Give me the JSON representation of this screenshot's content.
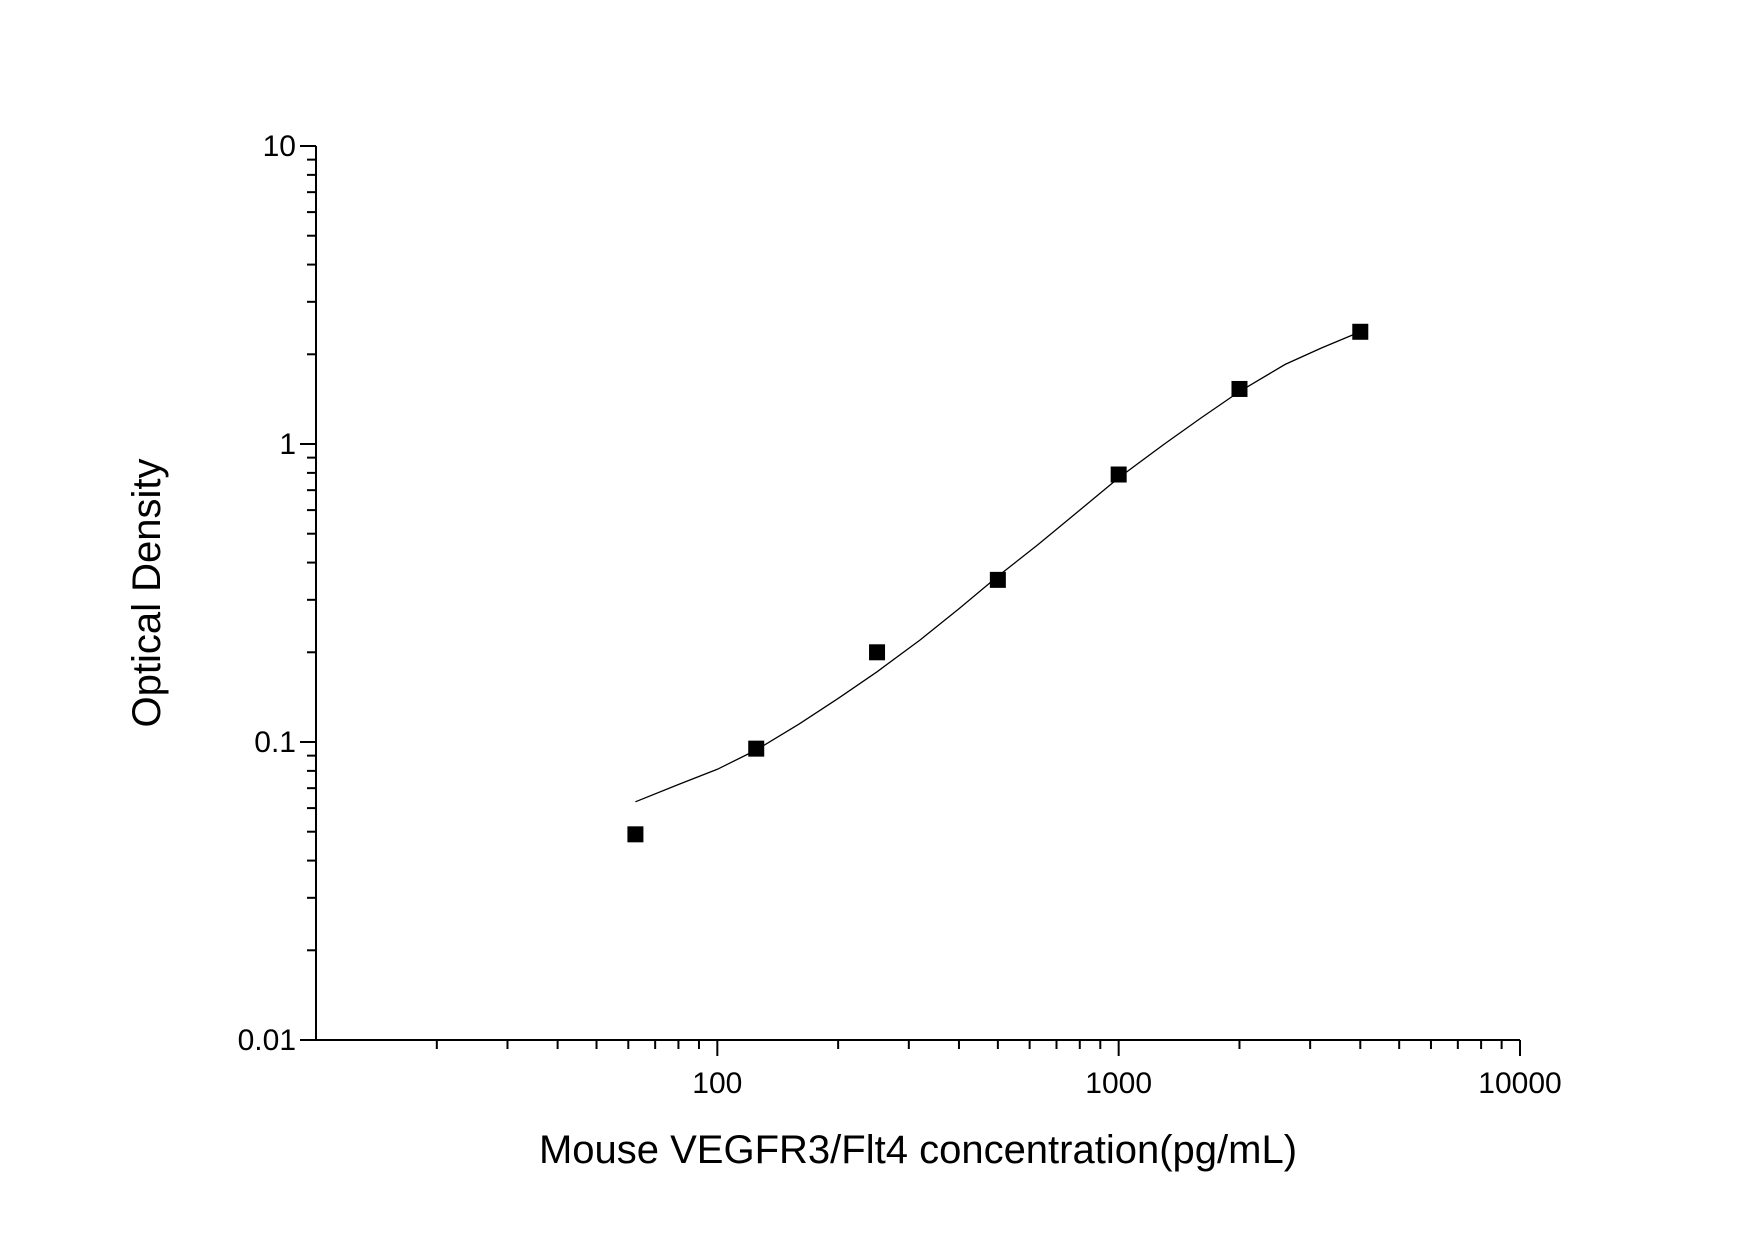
{
  "chart_data": {
    "type": "scatter",
    "title": "",
    "xlabel": "Mouse VEGFR3/Flt4 concentration(pg/mL)",
    "ylabel": "Optical Density",
    "x_scale": "log",
    "y_scale": "log",
    "xlim": [
      10,
      10000
    ],
    "ylim": [
      0.01,
      10
    ],
    "x_ticks": [
      100,
      1000,
      10000
    ],
    "x_tick_labels": [
      "100",
      "1000",
      "10000"
    ],
    "y_ticks": [
      0.01,
      0.1,
      1,
      10
    ],
    "y_tick_labels": [
      "0.01",
      "0.1",
      "1",
      "10"
    ],
    "grid": false,
    "legend": "none",
    "series": [
      {
        "marker": "square",
        "color": "#000000",
        "x": [
          62.5,
          125,
          250,
          500,
          1000,
          2000,
          4000
        ],
        "y": [
          0.049,
          0.095,
          0.2,
          0.35,
          0.79,
          1.53,
          2.38
        ]
      }
    ],
    "fit_curve": {
      "color": "#000000",
      "x": [
        62.5,
        80,
        100,
        125,
        160,
        200,
        250,
        320,
        400,
        500,
        630,
        800,
        1000,
        1300,
        1600,
        2000,
        2600,
        3200,
        4000
      ],
      "y": [
        0.063,
        0.072,
        0.081,
        0.094,
        0.115,
        0.14,
        0.172,
        0.22,
        0.28,
        0.36,
        0.46,
        0.6,
        0.77,
        1.0,
        1.22,
        1.5,
        1.85,
        2.1,
        2.38
      ]
    }
  }
}
